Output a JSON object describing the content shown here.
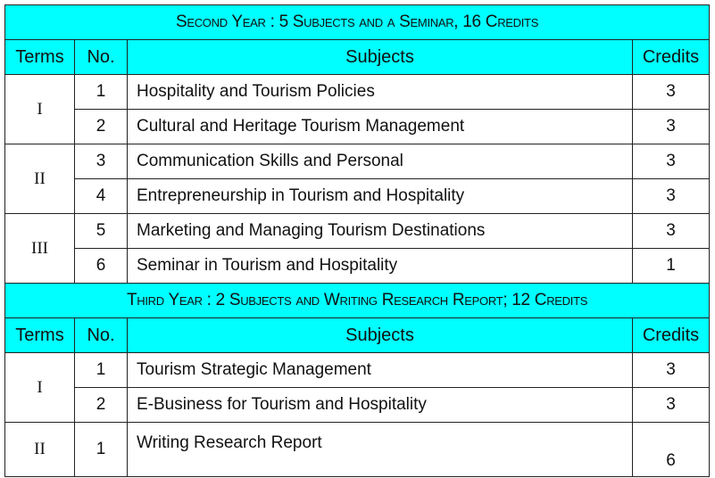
{
  "sections": [
    {
      "banner": "Second Year : 5 Subjects and a Seminar, 16 Credits",
      "headers": {
        "terms": "Terms",
        "no": "No.",
        "subjects": "Subjects",
        "credits": "Credits"
      },
      "terms": [
        {
          "term": "I",
          "rows": [
            {
              "no": "1",
              "subject": "Hospitality and Tourism Policies",
              "credits": "3"
            },
            {
              "no": "2",
              "subject": "Cultural and Heritage Tourism Management",
              "credits": "3"
            }
          ]
        },
        {
          "term": "II",
          "rows": [
            {
              "no": "3",
              "subject": "Communication Skills and Personal",
              "credits": "3"
            },
            {
              "no": "4",
              "subject": "Entrepreneurship in Tourism and Hospitality",
              "credits": "3"
            }
          ]
        },
        {
          "term": "III",
          "rows": [
            {
              "no": "5",
              "subject": "Marketing and Managing Tourism Destinations",
              "credits": "3"
            },
            {
              "no": "6",
              "subject": "Seminar in Tourism and Hospitality",
              "credits": "1"
            }
          ]
        }
      ]
    },
    {
      "banner": "Third Year : 2 Subjects and Writing Research Report; 12 Credits",
      "headers": {
        "terms": "Terms",
        "no": "No.",
        "subjects": "Subjects",
        "credits": "Credits"
      },
      "terms": [
        {
          "term": "I",
          "rows": [
            {
              "no": "1",
              "subject": "Tourism Strategic Management",
              "credits": "3"
            },
            {
              "no": "2",
              "subject": "E-Business for Tourism and Hospitality",
              "credits": "3"
            }
          ]
        },
        {
          "term": "II",
          "rows": [
            {
              "no": "1",
              "subject": "Writing Research Report",
              "credits": "6"
            }
          ]
        }
      ]
    }
  ]
}
